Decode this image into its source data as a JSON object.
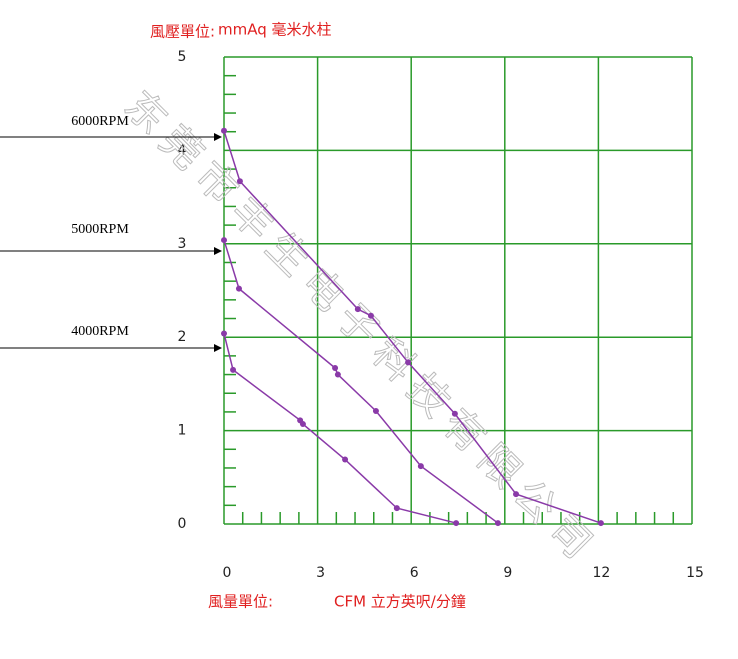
{
  "chart_data": {
    "type": "line",
    "y_unit_label": "風壓單位:",
    "y_unit": "mmAq 毫米水柱",
    "x_unit_label": "風量單位:",
    "x_unit": "CFM 立方英呎/分鐘",
    "watermark": "东莞市丰生电子科技有限公司",
    "xlim": [
      0,
      15
    ],
    "xticks": [
      0,
      3,
      6,
      9,
      12,
      15
    ],
    "ylim": [
      0,
      5
    ],
    "yticks": [
      0,
      1,
      2,
      3,
      4,
      5
    ],
    "grid": true,
    "grid_color": "#2a9a2a",
    "series": [
      {
        "name": "6000RPM",
        "color": "#8a3aa8",
        "x": [
          0,
          0.51,
          4.29,
          4.71,
          5.9,
          7.4,
          9.36,
          12.08
        ],
        "values": [
          4.21,
          3.67,
          2.3,
          2.23,
          1.73,
          1.18,
          0.32,
          0.01
        ]
      },
      {
        "name": "5000RPM",
        "color": "#8a3aa8",
        "x": [
          0,
          0.48,
          3.56,
          3.65,
          4.87,
          6.31,
          8.78
        ],
        "values": [
          3.04,
          2.52,
          1.67,
          1.6,
          1.21,
          0.62,
          0.01
        ]
      },
      {
        "name": "4000RPM",
        "color": "#8a3aa8",
        "x": [
          0,
          0.29,
          2.44,
          2.53,
          3.88,
          5.54,
          7.44
        ],
        "values": [
          2.04,
          1.65,
          1.11,
          1.07,
          0.69,
          0.17,
          0.01
        ]
      }
    ]
  }
}
